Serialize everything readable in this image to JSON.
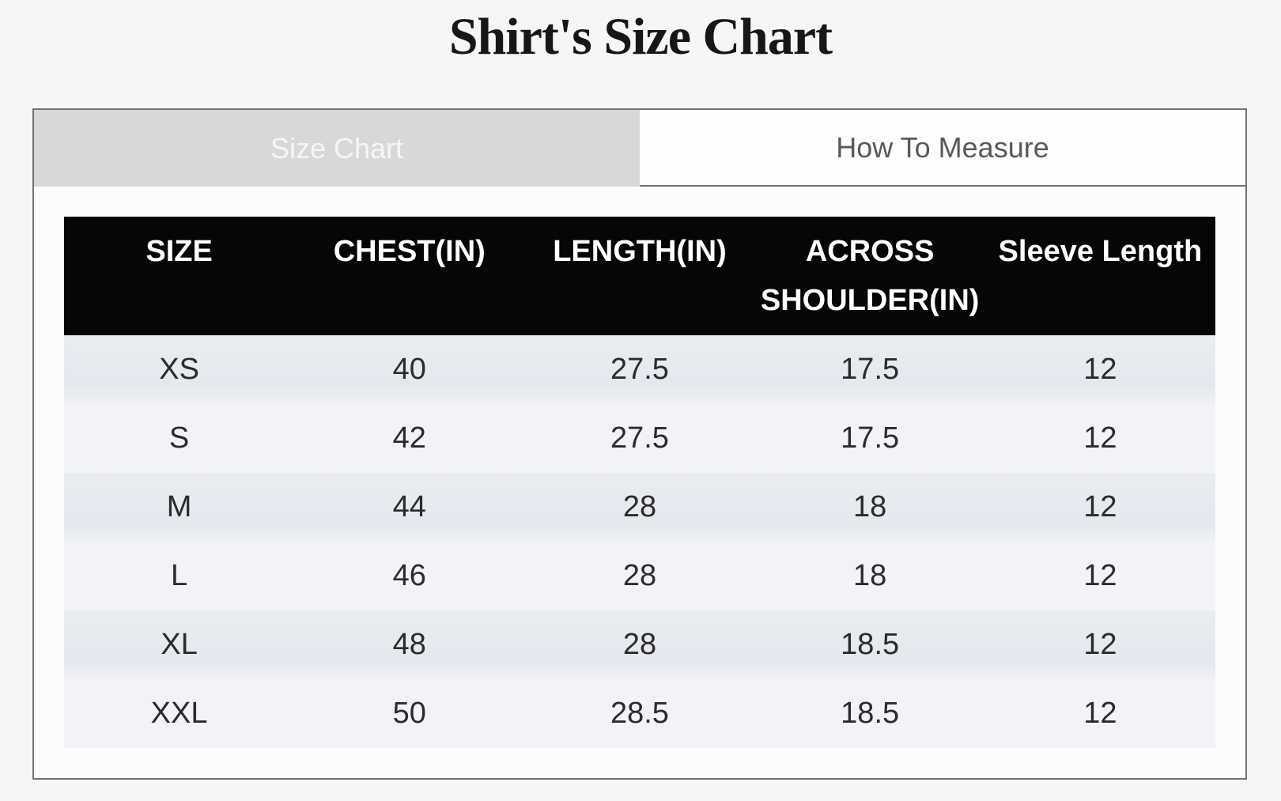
{
  "page": {
    "title": "Shirt's Size Chart"
  },
  "tabs": {
    "size_chart": {
      "label": "Size Chart",
      "active": true
    },
    "how_to_measure": {
      "label": "How To Measure",
      "active": false
    }
  },
  "size_table": {
    "columns": [
      "SIZE",
      "CHEST(IN)",
      "LENGTH(IN)",
      "ACROSS SHOULDER(IN)",
      "Sleeve Length"
    ],
    "rows": [
      {
        "size": "XS",
        "chest_in": "40",
        "length_in": "27.5",
        "across_shoulder_in": "17.5",
        "sleeve_length": "12"
      },
      {
        "size": "S",
        "chest_in": "42",
        "length_in": "27.5",
        "across_shoulder_in": "17.5",
        "sleeve_length": "12"
      },
      {
        "size": "M",
        "chest_in": "44",
        "length_in": "28",
        "across_shoulder_in": "18",
        "sleeve_length": "12"
      },
      {
        "size": "L",
        "chest_in": "46",
        "length_in": "28",
        "across_shoulder_in": "18",
        "sleeve_length": "12"
      },
      {
        "size": "XL",
        "chest_in": "48",
        "length_in": "28",
        "across_shoulder_in": "18.5",
        "sleeve_length": "12"
      },
      {
        "size": "XXL",
        "chest_in": "50",
        "length_in": "28.5",
        "across_shoulder_in": "18.5",
        "sleeve_length": "12"
      }
    ]
  },
  "colors": {
    "page_bg": "#f7f6f4",
    "panel_bg": "#fcfcfc",
    "border": "#717275",
    "tab_active_bg": "#d8d8d8",
    "tab_active_text": "#f6f6f6",
    "tab_inactive_bg": "#fdfdfd",
    "tab_inactive_text": "#58595b",
    "table_header_bg": "#060606",
    "table_header_text": "#ffffff",
    "row_odd_bg": "#e7e9ee",
    "row_even_bg": "#f2f3f6",
    "cell_text": "#2b2b2b",
    "title_text": "#161616"
  }
}
